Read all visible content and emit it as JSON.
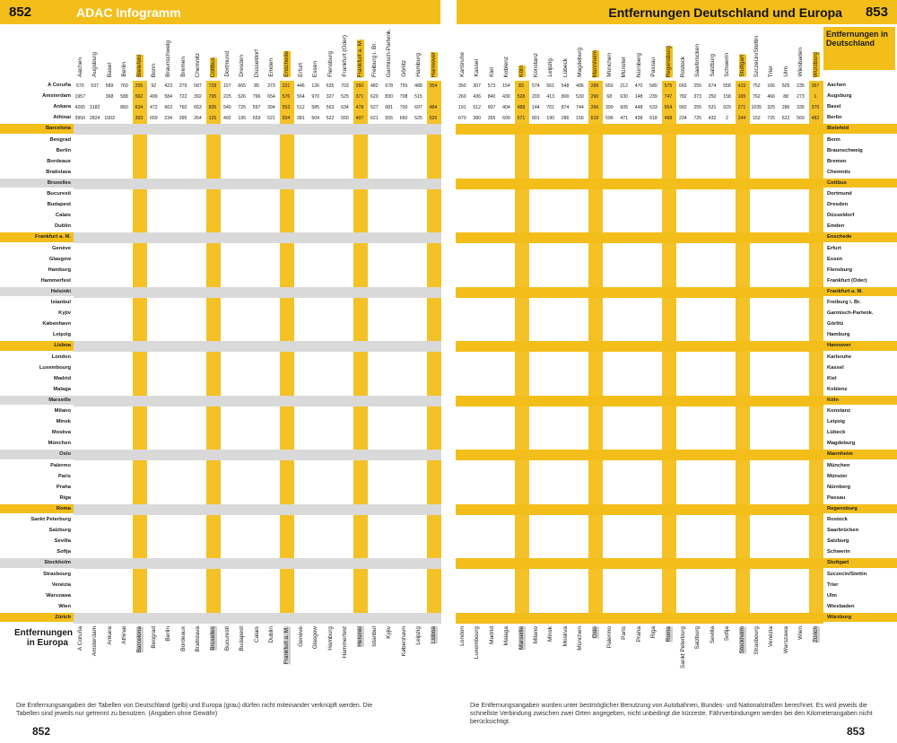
{
  "header": {
    "left_page": "852",
    "left_title": "ADAC Infogramm",
    "right_title": "Entfernungen Deutschland und Europa",
    "right_page": "853"
  },
  "corners": {
    "europe": "Entfernungen in Europa",
    "germany": "Entfernungen in Deutschland"
  },
  "notes": {
    "left": "Die Entfernungsangaben der Tabellen von Deutschland (gelb) und Europa (grau) dürfen nicht miteinander verknüpft werden. Die Tabellen sind jeweils nur getrennt zu benutzen. (Angaben ohne Gewähr)",
    "right": "Die Entfernungsangaben wurden unter bestmöglicher Benutzung von Autobahnen, Bundes- und Nationalstraßen berechnet. Es wird jeweils die schnellste Verbindung zwischen zwei Orten angegeben, nicht unbedingt die kürzeste. Fährverbindungen werden bei den Kilometerangaben nicht berücksichtigt."
  },
  "footer": {
    "left_page": "852",
    "right_page": "853"
  },
  "top_columns_left": [
    "Aachen",
    "Augsburg",
    "Basel",
    "Berlin",
    "Bielefeld",
    "Bonn",
    "Braunschweig",
    "Bremen",
    "Chemnitz",
    "Cottbus",
    "Dortmund",
    "Dresden",
    "Düsseldorf",
    "Emden",
    "Enschede",
    "Erfurt",
    "Essen",
    "Flensburg",
    "Frankfurt (Oder)",
    "Frankfurt a. M.",
    "Freiburg i. Br.",
    "Garmisch-Partenk.",
    "Görlitz",
    "Hamburg",
    "Hannover"
  ],
  "top_columns_right": [
    "Karlsruhe",
    "Kassel",
    "Kiel",
    "Koblenz",
    "Köln",
    "Konstanz",
    "Leipzig",
    "Lübeck",
    "Magdeburg",
    "Mannheim",
    "München",
    "Münster",
    "Nürnberg",
    "Passau",
    "Regensburg",
    "Rostock",
    "Saarbrücken",
    "Salzburg",
    "Schwerin",
    "Stuttgart",
    "Szczecin/Stettin",
    "Trier",
    "Ulm",
    "Wiesbaden",
    "Würzburg"
  ],
  "europe_rows": [
    "A Coruña",
    "Amsterdam",
    "Ankara",
    "Athinai",
    "Barcelona",
    "Beograd",
    "Berlin",
    "Bordeaux",
    "Bratislava",
    "Bruxelles",
    "Bucuresti",
    "Budapest",
    "Calais",
    "Dublin",
    "Frankfurt a. M.",
    "Genève",
    "Glasgow",
    "Hamburg",
    "Hammerfest",
    "Helsinki",
    "Istanbul",
    "Kyjiv",
    "København",
    "Leipzig",
    "Lisboa",
    "London",
    "Luxembourg",
    "Madrid",
    "Malaga",
    "Marseille",
    "Milano",
    "Minsk",
    "Moskva",
    "München",
    "Oslo",
    "Palermo",
    "Paris",
    "Praha",
    "Riga",
    "Roma",
    "Sankt Peterburg",
    "Salzburg",
    "Sevilla",
    "Sofija",
    "Stockholm",
    "Strasbourg",
    "Venézia",
    "Warszawa",
    "Wien",
    "Zürich"
  ],
  "europe_yellow_rows": [
    "Barcelona",
    "Frankfurt a. M.",
    "Lisboa",
    "Roma",
    "Zürich"
  ],
  "germany_rows": [
    "Aachen",
    "Augsburg",
    "Basel",
    "Berlin",
    "Bielefeld",
    "Bonn",
    "Braunschweig",
    "Bremen",
    "Chemnitz",
    "Cottbus",
    "Dortmund",
    "Dresden",
    "Düsseldorf",
    "Emden",
    "Enschede",
    "Erfurt",
    "Essen",
    "Flensburg",
    "Frankfurt (Oder)",
    "Frankfurt a. M.",
    "Freiburg i. Br.",
    "Garmisch-Partenk.",
    "Görlitz",
    "Hamburg",
    "Hannover",
    "Karlsruhe",
    "Kassel",
    "Kiel",
    "Koblenz",
    "Köln",
    "Konstanz",
    "Leipzig",
    "Lübeck",
    "Magdeburg",
    "Mannheim",
    "München",
    "Münster",
    "Nürnberg",
    "Passau",
    "Regensburg",
    "Rostock",
    "Saarbrücken",
    "Salzburg",
    "Schwerin",
    "Stuttgart",
    "Szczecin/Stettin",
    "Trier",
    "Ulm",
    "Wiesbaden",
    "Würzburg"
  ],
  "bottom_columns_left": [
    "A Coruña",
    "Amsterdam",
    "Ankara",
    "Athinai",
    "Barcelona",
    "Beograd",
    "Berlin",
    "Bordeaux",
    "Bratislava",
    "Bruxelles",
    "Bucuresti",
    "Budapest",
    "Calais",
    "Dublin",
    "Frankfurt a. M.",
    "Genève",
    "Glasgow",
    "Hamburg",
    "Hammerfest",
    "Helsinki",
    "Istanbul",
    "Kyjiv",
    "København",
    "Leipzig",
    "Lisboa"
  ],
  "bottom_columns_right": [
    "London",
    "Luxembourg",
    "Madrid",
    "Malaga",
    "Marseille",
    "Milano",
    "Minsk",
    "Moskva",
    "München",
    "Oslo",
    "Palermo",
    "Paris",
    "Praha",
    "Riga",
    "Roma",
    "Sankt Peterburg",
    "Salzburg",
    "Sevilla",
    "Sofija",
    "Stockholm",
    "Strasbourg",
    "Venézia",
    "Warszawa",
    "Wien",
    "Zürich"
  ],
  "sample_rows_left": [
    [
      "570",
      "537",
      "589",
      "760",
      "255",
      "92",
      "423",
      "379",
      "587",
      "728",
      "157",
      "665",
      "85",
      "373",
      "231",
      "446",
      "126",
      "635",
      "703",
      "260",
      "482",
      "678",
      "755",
      "488",
      "354"
    ],
    [
      "1957",
      "",
      "368",
      "588",
      "562",
      "499",
      "584",
      "722",
      "392",
      "795",
      "225",
      "526",
      "796",
      "654",
      "576",
      "564",
      "970",
      "327",
      "525",
      "371",
      "620",
      "830",
      "708",
      "515",
      ""
    ],
    [
      "4265",
      "3182",
      "",
      "860",
      "634",
      "472",
      "663",
      "760",
      "663",
      "835",
      "540",
      "725",
      "597",
      "394",
      "553",
      "512",
      "585",
      "563",
      "634",
      "478",
      "527",
      "681",
      "700",
      "697",
      "484"
    ],
    [
      "3950",
      "2824",
      "1003",
      "",
      "393",
      "659",
      "234",
      "395",
      "264",
      "125",
      "492",
      "195",
      "559",
      "521",
      "504",
      "381",
      "504",
      "522",
      "550",
      "407",
      "621",
      "555",
      "650",
      "525",
      "526"
    ]
  ],
  "sample_rows_right": [
    [
      "350",
      "307",
      "573",
      "154",
      "83",
      "574",
      "561",
      "548",
      "496",
      "288",
      "650",
      "212",
      "470",
      "580",
      "575",
      "665",
      "255",
      "674",
      "558",
      "415",
      "752",
      "166",
      "505",
      "235",
      "367"
    ],
    [
      "260",
      "436",
      "840",
      "430",
      "528",
      "203",
      "413",
      "800",
      "530",
      "290",
      "68",
      "630",
      "148",
      "239",
      "747",
      "782",
      "373",
      "250",
      "158",
      "165",
      "762",
      "466",
      "88",
      "273",
      "1"
    ],
    [
      "191",
      "512",
      "907",
      "404",
      "488",
      "144",
      "701",
      "874",
      "744",
      "266",
      "390",
      "605",
      "448",
      "533",
      "554",
      "992",
      "255",
      "531",
      "929",
      "271",
      "1035",
      "325",
      "286",
      "335",
      "375"
    ],
    [
      "670",
      "380",
      "355",
      "600",
      "571",
      "801",
      "190",
      "286",
      "156",
      "618",
      "596",
      "471",
      "438",
      "618",
      "498",
      "234",
      "725",
      "432",
      "2",
      "244",
      "152",
      "725",
      "622",
      "569",
      "482"
    ]
  ]
}
